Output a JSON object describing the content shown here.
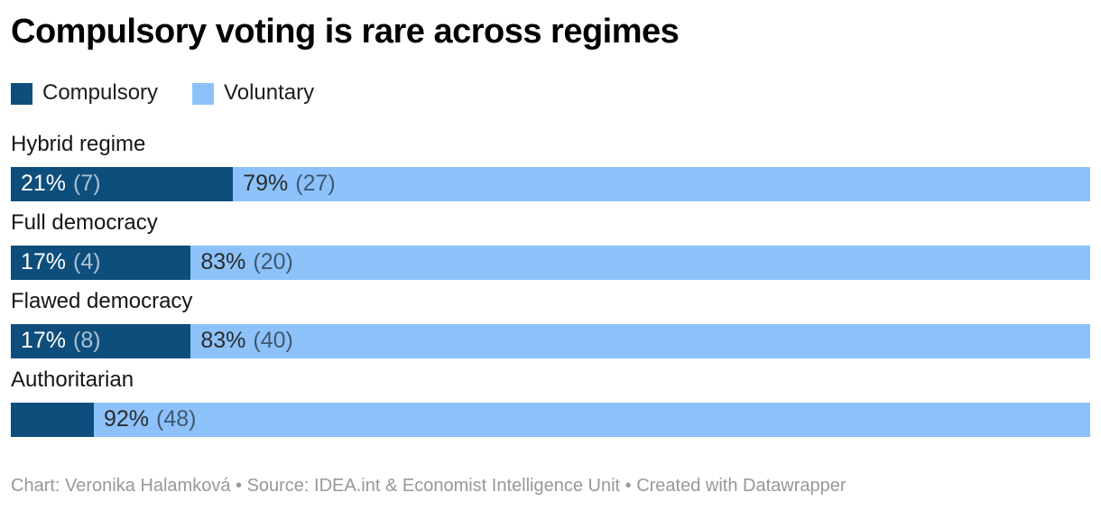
{
  "colors": {
    "compulsory": "#0E4E7C",
    "voluntary": "#8CC2F9"
  },
  "chart_data": {
    "type": "bar",
    "orientation": "horizontal",
    "stacked": true,
    "title": "Compulsory voting is rare across regimes",
    "legend": [
      {
        "label": "Compulsory",
        "color": "#0E4E7C"
      },
      {
        "label": "Voluntary",
        "color": "#8CC2F9"
      }
    ],
    "categories": [
      "Hybrid regime",
      "Full democracy",
      "Flawed democracy",
      "Authoritarian"
    ],
    "series": [
      {
        "name": "Compulsory",
        "values_pct": [
          21,
          17,
          17,
          8
        ],
        "counts": [
          7,
          4,
          8,
          null
        ]
      },
      {
        "name": "Voluntary",
        "values_pct": [
          79,
          83,
          83,
          92
        ],
        "counts": [
          27,
          20,
          40,
          48
        ]
      }
    ],
    "value_label_format": "pct% (count)",
    "rows": [
      {
        "category": "Hybrid regime",
        "segments": [
          {
            "width_pct": 20.588,
            "pct": "21%",
            "count": "(7)"
          },
          {
            "width_pct": 79.412,
            "pct": "79%",
            "count": "(27)"
          }
        ]
      },
      {
        "category": "Full democracy",
        "segments": [
          {
            "width_pct": 16.667,
            "pct": "17%",
            "count": "(4)"
          },
          {
            "width_pct": 83.333,
            "pct": "83%",
            "count": "(20)"
          }
        ]
      },
      {
        "category": "Flawed democracy",
        "segments": [
          {
            "width_pct": 16.667,
            "pct": "17%",
            "count": "(8)"
          },
          {
            "width_pct": 83.333,
            "pct": "83%",
            "count": "(40)"
          }
        ]
      },
      {
        "category": "Authoritarian",
        "segments": [
          {
            "width_pct": 7.692,
            "pct": "",
            "count": ""
          },
          {
            "width_pct": 92.308,
            "pct": "92%",
            "count": "(48)"
          }
        ]
      }
    ]
  },
  "footer": {
    "credit": "Chart: Veronika Halamková • Source: IDEA.int & Economist Intelligence Unit • Created with Datawrapper"
  }
}
